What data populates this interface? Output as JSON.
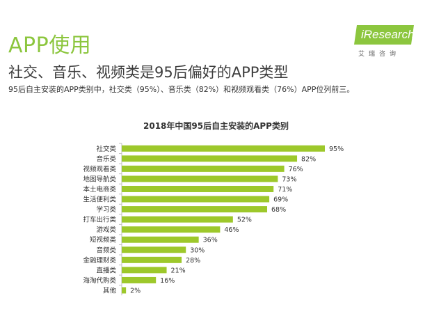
{
  "page": {
    "section_title": "APP使用",
    "headline": "社交、音乐、视频类是95后偏好的APP类型",
    "summary": "95后自主安装的APP类别中，社交类（95%）、音乐类（82%）和视频观看类（76%）APP位列前三。"
  },
  "logo": {
    "word": "iResearch",
    "subtitle": "艾瑞咨询"
  },
  "colors": {
    "accent": "#8cc63e",
    "bar": "#9dc82b",
    "text": "#333333"
  },
  "chart_data": {
    "type": "bar",
    "orientation": "horizontal",
    "title": "2018年中国95后自主安装的APP类别",
    "categories": [
      "社交类",
      "音乐类",
      "视频观看类",
      "地图导航类",
      "本土电商类",
      "生活便利类",
      "学习类",
      "打车出行类",
      "游戏类",
      "短视频类",
      "音频类",
      "金融理财类",
      "直播类",
      "海淘代购类",
      "其他"
    ],
    "values": [
      95,
      82,
      76,
      73,
      71,
      69,
      68,
      52,
      46,
      36,
      30,
      28,
      21,
      16,
      2
    ],
    "value_labels": [
      "95%",
      "82%",
      "76%",
      "73%",
      "71%",
      "69%",
      "68%",
      "52%",
      "46%",
      "36%",
      "30%",
      "28%",
      "21%",
      "16%",
      "2%"
    ],
    "unit": "%",
    "xlim": [
      0,
      100
    ],
    "grid": false,
    "legend": "none"
  }
}
